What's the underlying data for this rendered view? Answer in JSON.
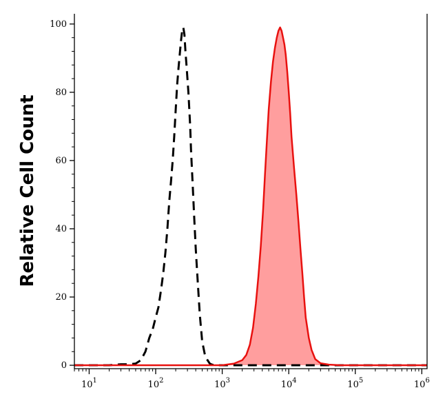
{
  "chart_data": {
    "type": "area",
    "ylabel": "Relative Cell Count",
    "xlabel": "",
    "xscale": "log",
    "xlim": [
      6,
      1200000
    ],
    "ylim": [
      -1,
      103
    ],
    "x_ticks": [
      {
        "base": "10",
        "exp": "1",
        "value": 10
      },
      {
        "base": "10",
        "exp": "2",
        "value": 100
      },
      {
        "base": "10",
        "exp": "3",
        "value": 1000
      },
      {
        "base": "10",
        "exp": "4",
        "value": 10000
      },
      {
        "base": "10",
        "exp": "5",
        "value": 100000
      },
      {
        "base": "10",
        "exp": "6",
        "value": 1000000
      }
    ],
    "y_ticks": [
      "0",
      "20",
      "40",
      "60",
      "80",
      "100"
    ],
    "grid": false,
    "series": [
      {
        "style": "dashed",
        "color": "#000000",
        "fill": "none",
        "x": [
          6,
          20,
          30,
          40,
          50,
          60,
          70,
          80,
          90,
          100,
          110,
          120,
          130,
          140,
          150,
          160,
          170,
          180,
          190,
          200,
          210,
          220,
          230,
          240,
          250,
          260,
          270,
          280,
          290,
          300,
          310,
          320,
          330,
          340,
          360,
          380,
          400,
          430,
          460,
          500,
          550,
          600,
          650,
          700,
          800,
          1000,
          1200000
        ],
        "y": [
          0,
          0,
          0.3,
          0.3,
          0.5,
          1.5,
          4,
          8,
          10.5,
          14,
          17,
          22,
          27,
          33,
          40,
          48,
          54,
          60,
          67,
          75,
          82,
          87,
          91,
          95,
          98,
          99,
          97,
          92,
          88,
          84,
          80,
          75,
          70,
          63,
          53,
          43,
          34,
          24,
          15,
          7,
          3,
          1.5,
          0.5,
          0.2,
          0,
          0,
          0
        ]
      },
      {
        "style": "solid",
        "color": "#e8110f",
        "fill": "#ff9e9e",
        "x": [
          6,
          1000,
          1500,
          2000,
          2300,
          2600,
          2900,
          3200,
          3500,
          3800,
          4100,
          4400,
          4700,
          5000,
          5400,
          5800,
          6200,
          6600,
          7000,
          7400,
          7800,
          8200,
          8600,
          9000,
          9500,
          10000,
          10500,
          11000,
          12000,
          13000,
          14000,
          15000,
          16000,
          17000,
          18000,
          20000,
          22000,
          25000,
          30000,
          40000,
          60000,
          100000,
          1200000
        ],
        "y": [
          0,
          0,
          0.5,
          1.5,
          3,
          6,
          11,
          18,
          26,
          35,
          45,
          56,
          66,
          75,
          83,
          89,
          93,
          96,
          98,
          99,
          98,
          96,
          94,
          91,
          86,
          80,
          74,
          67,
          58,
          50,
          42,
          34,
          27,
          20,
          14,
          8,
          4.5,
          1.8,
          0.6,
          0.2,
          0,
          0,
          0
        ]
      }
    ]
  }
}
